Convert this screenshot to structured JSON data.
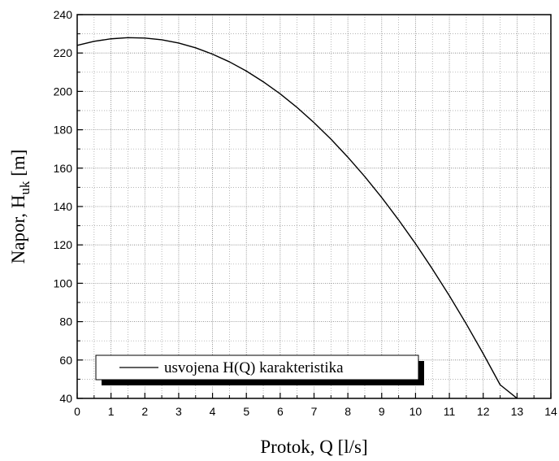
{
  "chart_data": {
    "type": "line",
    "xlabel": "Protok, Q [l/s]",
    "ylabel": {
      "prefix": "Napor, H",
      "subscript": "uk",
      "suffix": " [m]"
    },
    "xlim": [
      0,
      14
    ],
    "ylim": [
      40,
      240
    ],
    "x_ticks": [
      0,
      1,
      2,
      3,
      4,
      5,
      6,
      7,
      8,
      9,
      10,
      11,
      12,
      13,
      14
    ],
    "y_ticks": [
      40,
      60,
      80,
      100,
      120,
      140,
      160,
      180,
      200,
      220,
      240
    ],
    "x_minor_step": 0.5,
    "y_minor_step": 10,
    "grid": true,
    "legend": {
      "placement": "bottom-left",
      "entries": [
        "usvojena H(Q) karakteristika"
      ]
    },
    "series": [
      {
        "name": "usvojena H(Q) karakteristika",
        "color": "#000000",
        "x": [
          0,
          0.5,
          1,
          1.5,
          2,
          2.5,
          3,
          3.5,
          4,
          4.5,
          5,
          5.5,
          6,
          6.5,
          7,
          7.5,
          8,
          8.5,
          9,
          9.5,
          10,
          10.5,
          11,
          11.5,
          12,
          12.5,
          13
        ],
        "y": [
          224.0,
          226.1,
          227.4,
          228.0,
          227.8,
          226.9,
          225.2,
          222.7,
          219.4,
          215.4,
          210.6,
          205.0,
          198.7,
          191.6,
          183.7,
          175.1,
          165.7,
          155.6,
          144.7,
          133.0,
          120.6,
          107.4,
          93.5,
          78.8,
          63.3,
          47.1,
          40.0
        ]
      }
    ]
  }
}
